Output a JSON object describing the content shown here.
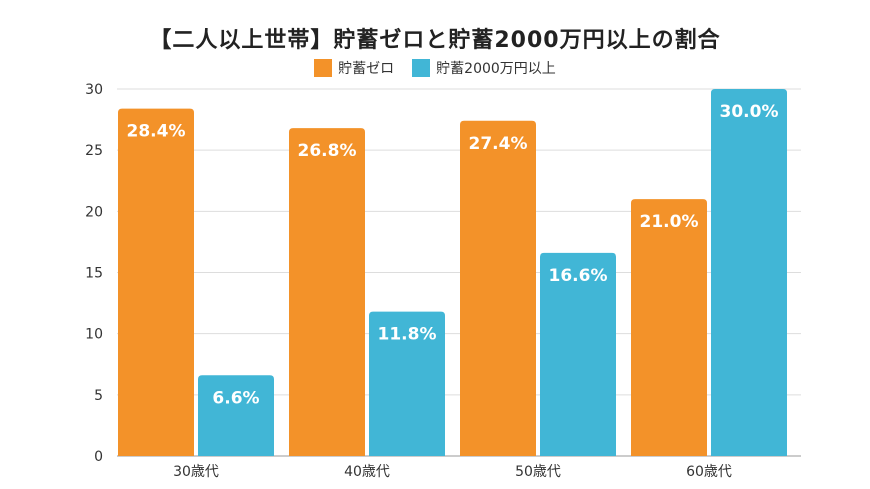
{
  "chart_data": {
    "type": "bar",
    "title": "【二人以上世帯】貯蓄ゼロと貯蓄2000万円以上の割合",
    "categories": [
      "30歳代",
      "40歳代",
      "50歳代",
      "60歳代"
    ],
    "series": [
      {
        "name": "貯蓄ゼロ",
        "values": [
          28.4,
          26.8,
          27.4,
          21.0
        ],
        "color": "#F39229"
      },
      {
        "name": "貯蓄2000万円以上",
        "values": [
          6.6,
          11.8,
          16.6,
          30.0
        ],
        "color": "#41B6D6"
      }
    ],
    "data_labels": [
      [
        "28.4%",
        "26.8%",
        "27.4%",
        "21.0%"
      ],
      [
        "6.6%",
        "11.8%",
        "16.6%",
        "30.0%"
      ]
    ],
    "ylim": [
      0,
      30
    ],
    "yticks": [
      0,
      5,
      10,
      15,
      20,
      25,
      30
    ],
    "grid": true,
    "legend": "top-center",
    "xlabel": "",
    "ylabel": ""
  }
}
